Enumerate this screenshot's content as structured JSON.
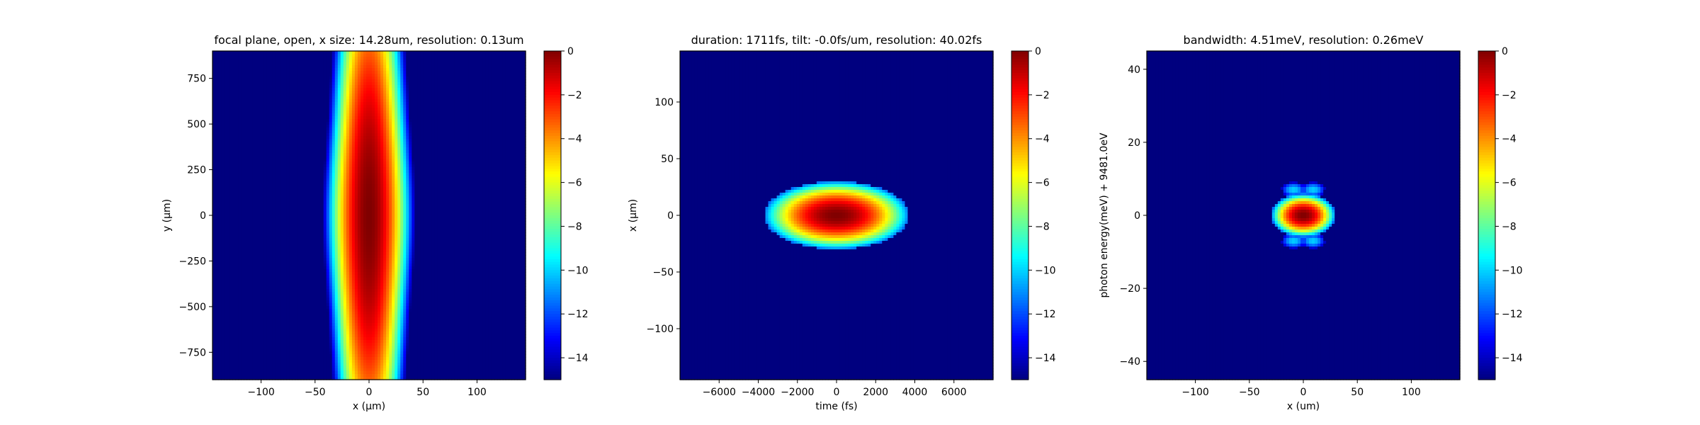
{
  "colormap": {
    "name": "jet",
    "stops": [
      "#00007f",
      "#0000ff",
      "#007fff",
      "#00ffff",
      "#7fff7f",
      "#ffff00",
      "#ff7f00",
      "#ff0000",
      "#7f0000"
    ]
  },
  "chart_data": [
    {
      "type": "heatmap",
      "title": "focal plane, open, x size: 14.28um, resolution: 0.13um",
      "xlabel": "x ($\\mu$m)",
      "ylabel": "y ($\\mu$m)",
      "xlim": [
        -145,
        145
      ],
      "ylim": [
        -900,
        900
      ],
      "xticks": [
        -100,
        -50,
        0,
        50,
        100
      ],
      "xtick_labels": [
        "−100",
        "−50",
        "0",
        "50",
        "100"
      ],
      "yticks": [
        -750,
        -500,
        -250,
        0,
        250,
        500,
        750
      ],
      "ytick_labels": [
        "−750",
        "−500",
        "−250",
        "0",
        "250",
        "500",
        "750"
      ],
      "colorbar": {
        "min": -15,
        "max": 0,
        "ticks": [
          0,
          -2,
          -4,
          -6,
          -8,
          -10,
          -12,
          -14
        ],
        "tick_labels": [
          "0",
          "−2",
          "−4",
          "−6",
          "−8",
          "−10",
          "−12",
          "−14"
        ]
      },
      "field": {
        "kind": "vertical-beam",
        "center_x": 0,
        "center_y": 0,
        "half_width_at_center": 29,
        "half_width_at_edge": 26,
        "value_range": [
          -15,
          0
        ]
      }
    },
    {
      "type": "heatmap",
      "title": "duration: 1711fs, tilt: -0.0fs/um, resolution: 40.02fs",
      "xlabel": "time (fs)",
      "ylabel": "x ($\\mu$m)",
      "xlim": [
        -8000,
        8000
      ],
      "ylim": [
        -145,
        145
      ],
      "xticks": [
        -6000,
        -4000,
        -2000,
        0,
        2000,
        4000,
        6000
      ],
      "xtick_labels": [
        "−6000",
        "−4000",
        "−2000",
        "0",
        "2000",
        "4000",
        "6000"
      ],
      "yticks": [
        -100,
        -50,
        0,
        50,
        100
      ],
      "ytick_labels": [
        "−100",
        "−50",
        "0",
        "50",
        "100"
      ],
      "colorbar": {
        "min": -15,
        "max": 0,
        "ticks": [
          0,
          -2,
          -4,
          -6,
          -8,
          -10,
          -12,
          -14
        ],
        "tick_labels": [
          "0",
          "−2",
          "−4",
          "−6",
          "−8",
          "−10",
          "−12",
          "−14"
        ]
      },
      "field": {
        "kind": "ellipse",
        "center_x": 0,
        "center_y": 0,
        "radius_x": 3700,
        "radius_y": 30,
        "value_range": [
          -15,
          0
        ]
      }
    },
    {
      "type": "heatmap",
      "title": "bandwidth: 4.51meV, resolution: 0.26meV",
      "xlabel": "x (um)",
      "ylabel": "photon energy(meV) + 9481.0eV",
      "xlim": [
        -145,
        145
      ],
      "ylim": [
        -45,
        45
      ],
      "xticks": [
        -100,
        -50,
        0,
        50,
        100
      ],
      "xtick_labels": [
        "−100",
        "−50",
        "0",
        "50",
        "100"
      ],
      "yticks": [
        -40,
        -20,
        0,
        20,
        40
      ],
      "ytick_labels": [
        "−40",
        "−20",
        "0",
        "20",
        "40"
      ],
      "colorbar": {
        "min": -15,
        "max": 0,
        "ticks": [
          0,
          -2,
          -4,
          -6,
          -8,
          -10,
          -12,
          -14
        ],
        "tick_labels": [
          "0",
          "−2",
          "−4",
          "−6",
          "−8",
          "−10",
          "−12",
          "−14"
        ]
      },
      "field": {
        "kind": "spot-with-sidelobes",
        "main": {
          "center_x": 0,
          "center_y": 0,
          "radius_x": 30,
          "radius_y": 6
        },
        "sidelobes": [
          {
            "center_x": -9,
            "center_y": 7,
            "radius_x": 11,
            "radius_y": 2,
            "peak": -10
          },
          {
            "center_x": 9,
            "center_y": 7,
            "radius_x": 11,
            "radius_y": 2,
            "peak": -10
          },
          {
            "center_x": -9,
            "center_y": -7,
            "radius_x": 11,
            "radius_y": 2,
            "peak": -10
          },
          {
            "center_x": 9,
            "center_y": -7,
            "radius_x": 11,
            "radius_y": 2,
            "peak": -10
          }
        ],
        "value_range": [
          -15,
          0
        ]
      }
    }
  ]
}
